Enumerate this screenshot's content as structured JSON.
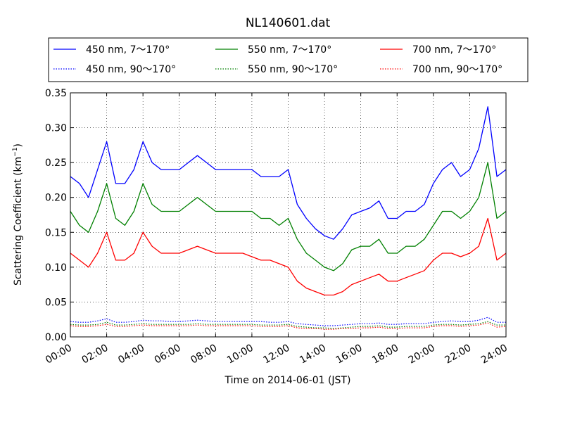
{
  "chart_data": {
    "type": "line",
    "title": "NL140601.dat",
    "xlabel": "Time on 2014-06-01 (JST)",
    "ylabel_main": "Scattering Coefficient (km",
    "ylabel_sup": "−1",
    "ylabel_tail": ")",
    "xlim": [
      "2014-06-01 00:00",
      "2014-06-02 00:00"
    ],
    "ylim": [
      0.0,
      0.35
    ],
    "grid": true,
    "legend_position": "top, above plot",
    "x_tick_labels": [
      "00:00",
      "02:00",
      "04:00",
      "06:00",
      "08:00",
      "10:00",
      "12:00",
      "14:00",
      "16:00",
      "18:00",
      "20:00",
      "22:00",
      "24:00"
    ],
    "y_ticks": [
      0.0,
      0.05,
      0.1,
      0.15,
      0.2,
      0.25,
      0.3,
      0.35
    ],
    "y_tick_labels": [
      "0.00",
      "0.05",
      "0.10",
      "0.15",
      "0.20",
      "0.25",
      "0.30",
      "0.35"
    ],
    "x": [
      "00:00",
      "00:30",
      "01:00",
      "01:30",
      "02:00",
      "02:30",
      "03:00",
      "03:30",
      "04:00",
      "04:30",
      "05:00",
      "05:30",
      "06:00",
      "06:30",
      "07:00",
      "07:30",
      "08:00",
      "08:30",
      "09:00",
      "09:30",
      "10:00",
      "10:30",
      "11:00",
      "11:30",
      "12:00",
      "12:30",
      "13:00",
      "13:30",
      "14:00",
      "14:30",
      "15:00",
      "15:30",
      "16:00",
      "16:30",
      "17:00",
      "17:30",
      "18:00",
      "18:30",
      "19:00",
      "19:30",
      "20:00",
      "20:30",
      "21:00",
      "21:30",
      "22:00",
      "22:30",
      "23:00",
      "23:30",
      "24:00"
    ],
    "series": [
      {
        "name": "450 nm, 7～170°",
        "color": "#0000ff",
        "style": "solid",
        "values": [
          0.23,
          0.22,
          0.2,
          0.24,
          0.28,
          0.22,
          0.22,
          0.24,
          0.28,
          0.25,
          0.24,
          0.24,
          0.24,
          0.25,
          0.26,
          0.25,
          0.24,
          0.24,
          0.24,
          0.24,
          0.24,
          0.23,
          0.23,
          0.23,
          0.24,
          0.19,
          0.17,
          0.155,
          0.145,
          0.14,
          0.155,
          0.175,
          0.18,
          0.185,
          0.195,
          0.17,
          0.17,
          0.18,
          0.18,
          0.19,
          0.22,
          0.24,
          0.25,
          0.23,
          0.24,
          0.27,
          0.33,
          0.23,
          0.24
        ]
      },
      {
        "name": "450 nm, 90～170°",
        "color": "#0000ff",
        "style": "dotted",
        "values": [
          0.022,
          0.021,
          0.021,
          0.023,
          0.026,
          0.021,
          0.021,
          0.022,
          0.024,
          0.023,
          0.023,
          0.022,
          0.022,
          0.023,
          0.024,
          0.023,
          0.022,
          0.022,
          0.022,
          0.022,
          0.022,
          0.022,
          0.021,
          0.021,
          0.022,
          0.019,
          0.018,
          0.017,
          0.016,
          0.016,
          0.017,
          0.018,
          0.019,
          0.019,
          0.02,
          0.018,
          0.018,
          0.019,
          0.019,
          0.019,
          0.021,
          0.022,
          0.023,
          0.022,
          0.022,
          0.024,
          0.028,
          0.021,
          0.021
        ]
      },
      {
        "name": "550 nm, 7～170°",
        "color": "#008000",
        "style": "solid",
        "values": [
          0.18,
          0.16,
          0.15,
          0.18,
          0.22,
          0.17,
          0.16,
          0.18,
          0.22,
          0.19,
          0.18,
          0.18,
          0.18,
          0.19,
          0.2,
          0.19,
          0.18,
          0.18,
          0.18,
          0.18,
          0.18,
          0.17,
          0.17,
          0.16,
          0.17,
          0.14,
          0.12,
          0.11,
          0.1,
          0.095,
          0.105,
          0.125,
          0.13,
          0.13,
          0.14,
          0.12,
          0.12,
          0.13,
          0.13,
          0.14,
          0.16,
          0.18,
          0.18,
          0.17,
          0.18,
          0.2,
          0.25,
          0.17,
          0.18
        ]
      },
      {
        "name": "550 nm, 90～170°",
        "color": "#008000",
        "style": "dotted",
        "values": [
          0.018,
          0.017,
          0.017,
          0.018,
          0.021,
          0.017,
          0.017,
          0.018,
          0.019,
          0.018,
          0.018,
          0.018,
          0.018,
          0.018,
          0.019,
          0.018,
          0.018,
          0.018,
          0.018,
          0.018,
          0.018,
          0.017,
          0.017,
          0.017,
          0.018,
          0.015,
          0.014,
          0.013,
          0.013,
          0.012,
          0.013,
          0.014,
          0.015,
          0.015,
          0.016,
          0.014,
          0.014,
          0.015,
          0.015,
          0.015,
          0.017,
          0.018,
          0.018,
          0.017,
          0.018,
          0.019,
          0.022,
          0.017,
          0.017
        ]
      },
      {
        "name": "700 nm, 7～170°",
        "color": "#ff0000",
        "style": "solid",
        "values": [
          0.12,
          0.11,
          0.1,
          0.12,
          0.15,
          0.11,
          0.11,
          0.12,
          0.15,
          0.13,
          0.12,
          0.12,
          0.12,
          0.125,
          0.13,
          0.125,
          0.12,
          0.12,
          0.12,
          0.12,
          0.115,
          0.11,
          0.11,
          0.105,
          0.1,
          0.08,
          0.07,
          0.065,
          0.06,
          0.06,
          0.065,
          0.075,
          0.08,
          0.085,
          0.09,
          0.08,
          0.08,
          0.085,
          0.09,
          0.095,
          0.11,
          0.12,
          0.12,
          0.115,
          0.12,
          0.13,
          0.17,
          0.11,
          0.12
        ]
      },
      {
        "name": "700 nm, 90～170°",
        "color": "#ff0000",
        "style": "dotted",
        "values": [
          0.016,
          0.015,
          0.015,
          0.016,
          0.018,
          0.015,
          0.015,
          0.016,
          0.017,
          0.016,
          0.016,
          0.016,
          0.016,
          0.016,
          0.017,
          0.016,
          0.016,
          0.016,
          0.016,
          0.016,
          0.016,
          0.015,
          0.015,
          0.015,
          0.016,
          0.013,
          0.012,
          0.012,
          0.011,
          0.011,
          0.012,
          0.012,
          0.013,
          0.013,
          0.014,
          0.012,
          0.012,
          0.013,
          0.013,
          0.013,
          0.015,
          0.016,
          0.016,
          0.015,
          0.016,
          0.017,
          0.02,
          0.014,
          0.015
        ]
      }
    ]
  }
}
